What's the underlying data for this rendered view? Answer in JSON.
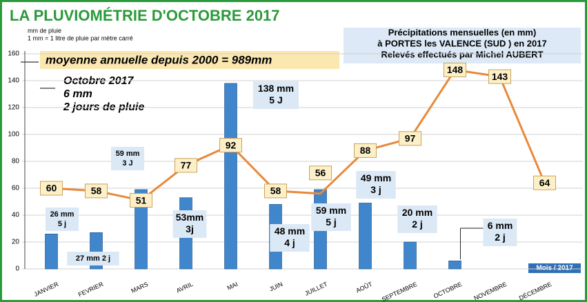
{
  "chart_data": {
    "type": "bar+line",
    "title": "LA PLUVIOMÉTRIE D'OCTOBRE 2017",
    "y_label": "mm de pluie",
    "y_note": "1 mm = 1 litre de pluie  par  mètre carré",
    "x_label": "Mois / 2017",
    "annotations": {
      "average": "moyenne annuelle depuis 2000 = 989mm",
      "month": [
        "Octobre 2017",
        "6 mm",
        "2 jours de pluie"
      ],
      "info": [
        "Précipitations mensuelles (en mm)",
        "à PORTES les VALENCE (SUD ) en 2017",
        "Relevés effectués par Michel AUBERT"
      ]
    },
    "categories": [
      "JANVIER",
      "FEVRIER",
      "MARS",
      "AVRIL",
      "MAI",
      "JUIN",
      "JUILLET",
      "AOÛT",
      "SEPTEMBRE",
      "OCTOBRE",
      "NOVEMBRE",
      "DÉCEMBRE"
    ],
    "series": [
      {
        "type": "bar",
        "color": "#3f86cc",
        "values": [
          26,
          27,
          59,
          53,
          138,
          48,
          59,
          49,
          20,
          6,
          null,
          null
        ],
        "value_labels": [
          [
            "26 mm",
            "5 j"
          ],
          [
            "27 mm 2 j"
          ],
          [
            "59 mm",
            "3 J"
          ],
          [
            "53mm",
            "3j"
          ],
          [
            "138 mm",
            "5 J"
          ],
          [
            "48 mm",
            "4 j"
          ],
          [
            "59 mm",
            "5 j"
          ],
          [
            "49 mm",
            "3 j"
          ],
          [
            "20 mm",
            "2 j"
          ],
          [
            "6 mm",
            "2 j"
          ],
          null,
          null
        ]
      },
      {
        "type": "line",
        "color": "#e8893a",
        "values": [
          60,
          58,
          51,
          77,
          92,
          58,
          56,
          88,
          97,
          148,
          143,
          64
        ]
      }
    ],
    "ylim": [
      0,
      160
    ],
    "yticks": [
      0,
      20,
      40,
      60,
      80,
      100,
      120,
      140,
      160
    ],
    "grid": true
  }
}
